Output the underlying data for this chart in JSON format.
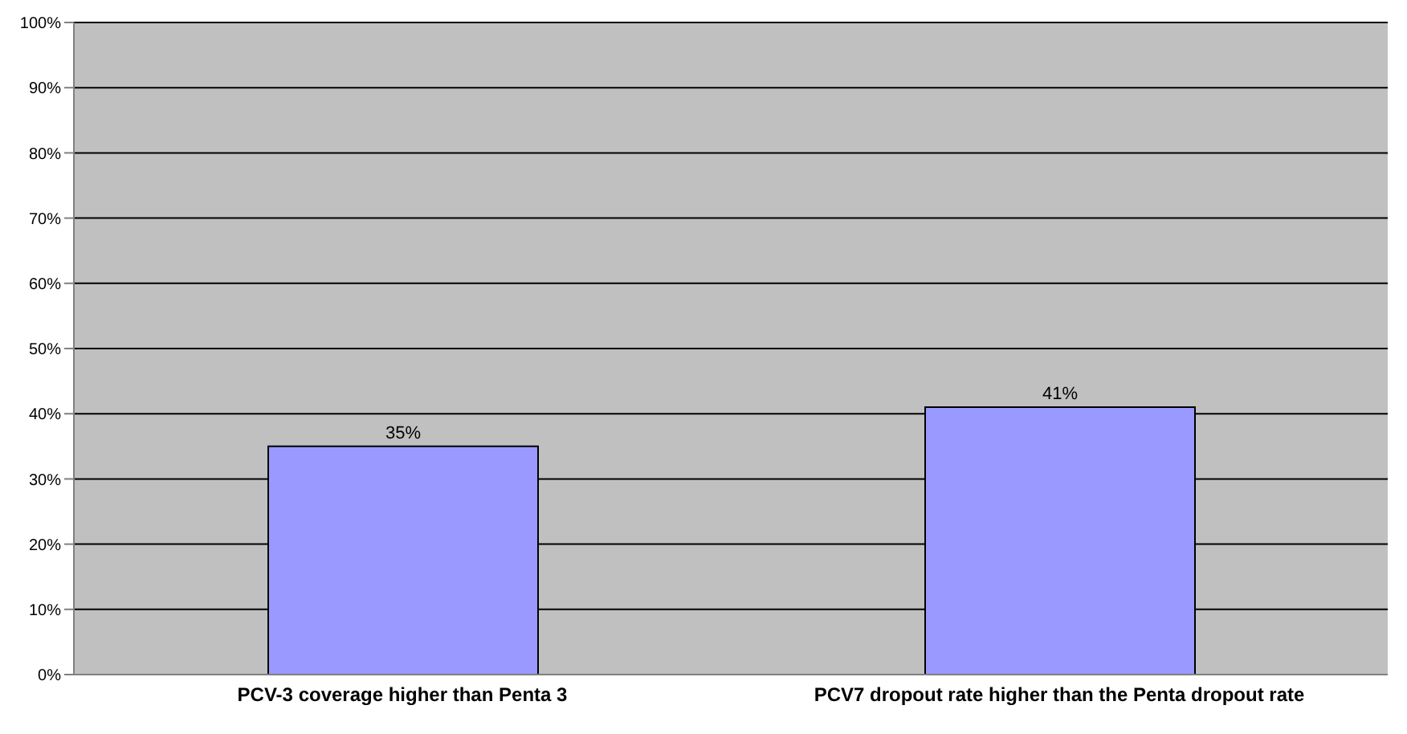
{
  "chart_data": {
    "type": "bar",
    "categories": [
      "PCV-3 coverage higher than Penta 3",
      "PCV7 dropout rate higher than the Penta dropout rate"
    ],
    "values": [
      35,
      41
    ],
    "color": "#9999ff",
    "value_labels": [
      "35%",
      "41%"
    ],
    "ylim": [
      0,
      100
    ],
    "yticks": [
      {
        "value": 0,
        "label": "0%"
      },
      {
        "value": 10,
        "label": "10%"
      },
      {
        "value": 20,
        "label": "20%"
      },
      {
        "value": 30,
        "label": "30%"
      },
      {
        "value": 40,
        "label": "40%"
      },
      {
        "value": 50,
        "label": "50%"
      },
      {
        "value": 60,
        "label": "60%"
      },
      {
        "value": 70,
        "label": "70%"
      },
      {
        "value": 80,
        "label": "80%"
      },
      {
        "value": 90,
        "label": "90%"
      },
      {
        "value": 100,
        "label": "100%"
      }
    ],
    "grid": "y",
    "legend": false
  }
}
